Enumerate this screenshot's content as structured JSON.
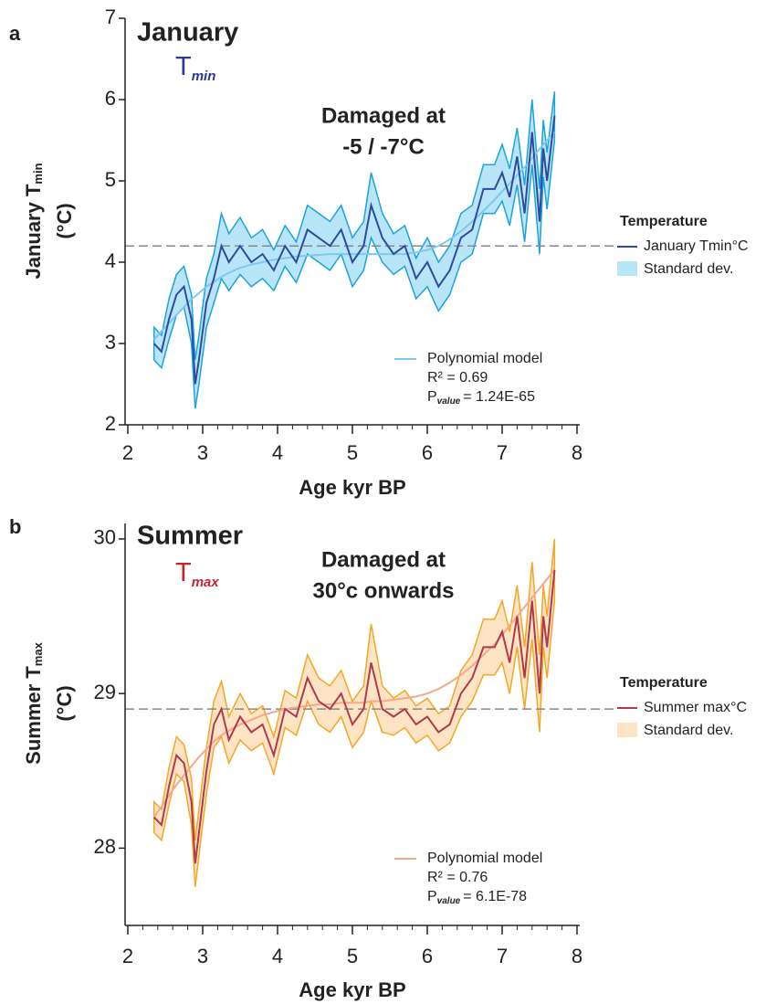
{
  "chart_data": [
    {
      "type": "line",
      "panel_label": "a",
      "title": "January",
      "title_symbol": "T",
      "title_subscript": "min",
      "annotation": [
        "Damaged at",
        "-5 / -7°C"
      ],
      "y_label": "January T",
      "y_label_subscript": "min",
      "y_unit": "(°C)",
      "x_label": "Age kyr BP",
      "legend_title": "Temperature",
      "title_color": "#2b3990",
      "x": [
        2.35,
        2.45,
        2.55,
        2.65,
        2.75,
        2.85,
        2.9,
        2.95,
        3.05,
        3.15,
        3.25,
        3.35,
        3.5,
        3.65,
        3.8,
        3.95,
        4.1,
        4.25,
        4.4,
        4.55,
        4.7,
        4.85,
        5.0,
        5.15,
        5.25,
        5.4,
        5.55,
        5.7,
        5.85,
        6.0,
        6.15,
        6.3,
        6.45,
        6.6,
        6.75,
        6.9,
        7.0,
        7.1,
        7.2,
        7.3,
        7.4,
        7.5,
        7.55,
        7.6,
        7.7
      ],
      "series": [
        {
          "name": "January Tmin°C",
          "color": "#2e4a9e",
          "values": [
            3.0,
            2.9,
            3.3,
            3.6,
            3.7,
            3.3,
            2.5,
            2.8,
            3.5,
            3.8,
            4.2,
            4.0,
            4.2,
            4.0,
            4.1,
            3.9,
            4.2,
            4.0,
            4.4,
            4.3,
            4.2,
            4.4,
            4.0,
            4.2,
            4.7,
            4.3,
            4.1,
            4.2,
            3.8,
            4.0,
            3.7,
            3.9,
            4.3,
            4.4,
            4.9,
            4.9,
            5.1,
            4.8,
            5.3,
            4.6,
            5.6,
            4.5,
            5.4,
            5.0,
            5.8
          ]
        },
        {
          "name": "Standard dev.",
          "color": "#1aa3e0",
          "fill": "#b8e6f8",
          "values": [
            0.2,
            0.2,
            0.25,
            0.25,
            0.25,
            0.3,
            0.3,
            0.3,
            0.3,
            0.3,
            0.4,
            0.35,
            0.35,
            0.3,
            0.3,
            0.25,
            0.25,
            0.25,
            0.3,
            0.3,
            0.3,
            0.3,
            0.3,
            0.3,
            0.4,
            0.3,
            0.25,
            0.25,
            0.25,
            0.3,
            0.3,
            0.3,
            0.3,
            0.3,
            0.3,
            0.3,
            0.35,
            0.35,
            0.35,
            0.35,
            0.4,
            0.4,
            0.35,
            0.35,
            0.3
          ]
        },
        {
          "name": "Polynomial model",
          "color": "#7ec8ec",
          "values": [
            3.05,
            3.15,
            3.25,
            3.35,
            3.45,
            3.55,
            3.58,
            3.62,
            3.7,
            3.76,
            3.82,
            3.87,
            3.93,
            3.97,
            4.0,
            4.03,
            4.05,
            4.07,
            4.08,
            4.09,
            4.1,
            4.1,
            4.1,
            4.1,
            4.1,
            4.1,
            4.1,
            4.1,
            4.12,
            4.15,
            4.2,
            4.28,
            4.38,
            4.5,
            4.63,
            4.77,
            4.87,
            4.97,
            5.07,
            5.17,
            5.28,
            5.39,
            5.45,
            5.5,
            5.6
          ]
        }
      ],
      "reference_line": 4.2,
      "stats": {
        "r2": "R² = 0.69",
        "p_symbol": "P",
        "p_subscript": "value",
        "p_text": "= 1.24E-65"
      },
      "xlim": [
        2,
        8
      ],
      "xticks": [
        2,
        3,
        4,
        5,
        6,
        7,
        8
      ],
      "xminorticks": [
        2.2,
        2.4,
        2.6,
        2.8,
        3.2,
        3.4,
        3.6,
        3.8,
        4.2,
        4.4,
        4.6,
        4.8,
        5.2,
        5.4,
        5.6,
        5.8,
        6.2,
        6.4,
        6.6,
        6.8,
        7.2,
        7.4,
        7.6,
        7.8
      ],
      "ylim": [
        2,
        7
      ],
      "yticks": [
        2,
        3,
        4,
        5,
        6,
        7
      ]
    },
    {
      "type": "line",
      "panel_label": "b",
      "title": "Summer",
      "title_symbol": "T",
      "title_subscript": "max",
      "annotation": [
        "Damaged at",
        "30°c onwards"
      ],
      "y_label": "Summer T",
      "y_label_subscript": "max",
      "y_unit": "(°C)",
      "x_label": "Age kyr BP",
      "legend_title": "Temperature",
      "title_color": "#c1272d",
      "x": [
        2.35,
        2.45,
        2.55,
        2.65,
        2.75,
        2.85,
        2.9,
        2.95,
        3.05,
        3.15,
        3.25,
        3.35,
        3.5,
        3.65,
        3.8,
        3.95,
        4.1,
        4.25,
        4.4,
        4.55,
        4.7,
        4.85,
        5.0,
        5.15,
        5.25,
        5.4,
        5.55,
        5.7,
        5.85,
        6.0,
        6.15,
        6.3,
        6.45,
        6.6,
        6.75,
        6.9,
        7.0,
        7.1,
        7.2,
        7.3,
        7.4,
        7.5,
        7.55,
        7.6,
        7.7
      ],
      "series": [
        {
          "name": "Summer max°C",
          "color": "#b03a4a",
          "values": [
            28.2,
            28.15,
            28.4,
            28.6,
            28.55,
            28.3,
            27.9,
            28.1,
            28.5,
            28.8,
            28.9,
            28.7,
            28.85,
            28.75,
            28.8,
            28.6,
            28.9,
            28.85,
            29.1,
            28.95,
            28.9,
            29.0,
            28.8,
            28.9,
            29.2,
            28.9,
            28.85,
            28.9,
            28.8,
            28.85,
            28.75,
            28.8,
            29.0,
            29.1,
            29.3,
            29.3,
            29.4,
            29.2,
            29.5,
            29.1,
            29.6,
            29.0,
            29.5,
            29.3,
            29.8
          ]
        },
        {
          "name": "Standard dev.",
          "color": "#f5a623",
          "fill": "#fde4c4",
          "values": [
            0.1,
            0.1,
            0.12,
            0.12,
            0.12,
            0.15,
            0.15,
            0.15,
            0.15,
            0.15,
            0.18,
            0.15,
            0.15,
            0.12,
            0.12,
            0.12,
            0.12,
            0.12,
            0.15,
            0.15,
            0.15,
            0.15,
            0.15,
            0.15,
            0.25,
            0.15,
            0.12,
            0.12,
            0.12,
            0.12,
            0.12,
            0.12,
            0.15,
            0.15,
            0.18,
            0.18,
            0.2,
            0.2,
            0.2,
            0.2,
            0.25,
            0.25,
            0.2,
            0.2,
            0.2
          ]
        },
        {
          "name": "Polynomial model",
          "color": "#f4a98a",
          "values": [
            28.2,
            28.27,
            28.34,
            28.41,
            28.47,
            28.53,
            28.56,
            28.59,
            28.64,
            28.69,
            28.73,
            28.76,
            28.8,
            28.83,
            28.86,
            28.88,
            28.9,
            28.91,
            28.92,
            28.93,
            28.93,
            28.94,
            28.94,
            28.94,
            28.95,
            28.95,
            28.96,
            28.97,
            28.98,
            29.0,
            29.03,
            29.07,
            29.12,
            29.18,
            29.25,
            29.32,
            29.38,
            29.44,
            29.5,
            29.56,
            29.62,
            29.68,
            29.71,
            29.74,
            29.8
          ]
        }
      ],
      "reference_line": 28.9,
      "stats": {
        "r2": "R² = 0.76",
        "p_symbol": "P",
        "p_subscript": "value",
        "p_text": "= 6.1E-78"
      },
      "xlim": [
        2,
        8
      ],
      "xticks": [
        2,
        3,
        4,
        5,
        6,
        7,
        8
      ],
      "xminorticks": [
        2.2,
        2.4,
        2.6,
        2.8,
        3.2,
        3.4,
        3.6,
        3.8,
        4.2,
        4.4,
        4.6,
        4.8,
        5.2,
        5.4,
        5.6,
        5.8,
        6.2,
        6.4,
        6.6,
        6.8,
        7.2,
        7.4,
        7.6,
        7.8
      ],
      "ylim": [
        27.5,
        30.1
      ],
      "yticks": [
        28,
        29,
        30
      ]
    }
  ]
}
